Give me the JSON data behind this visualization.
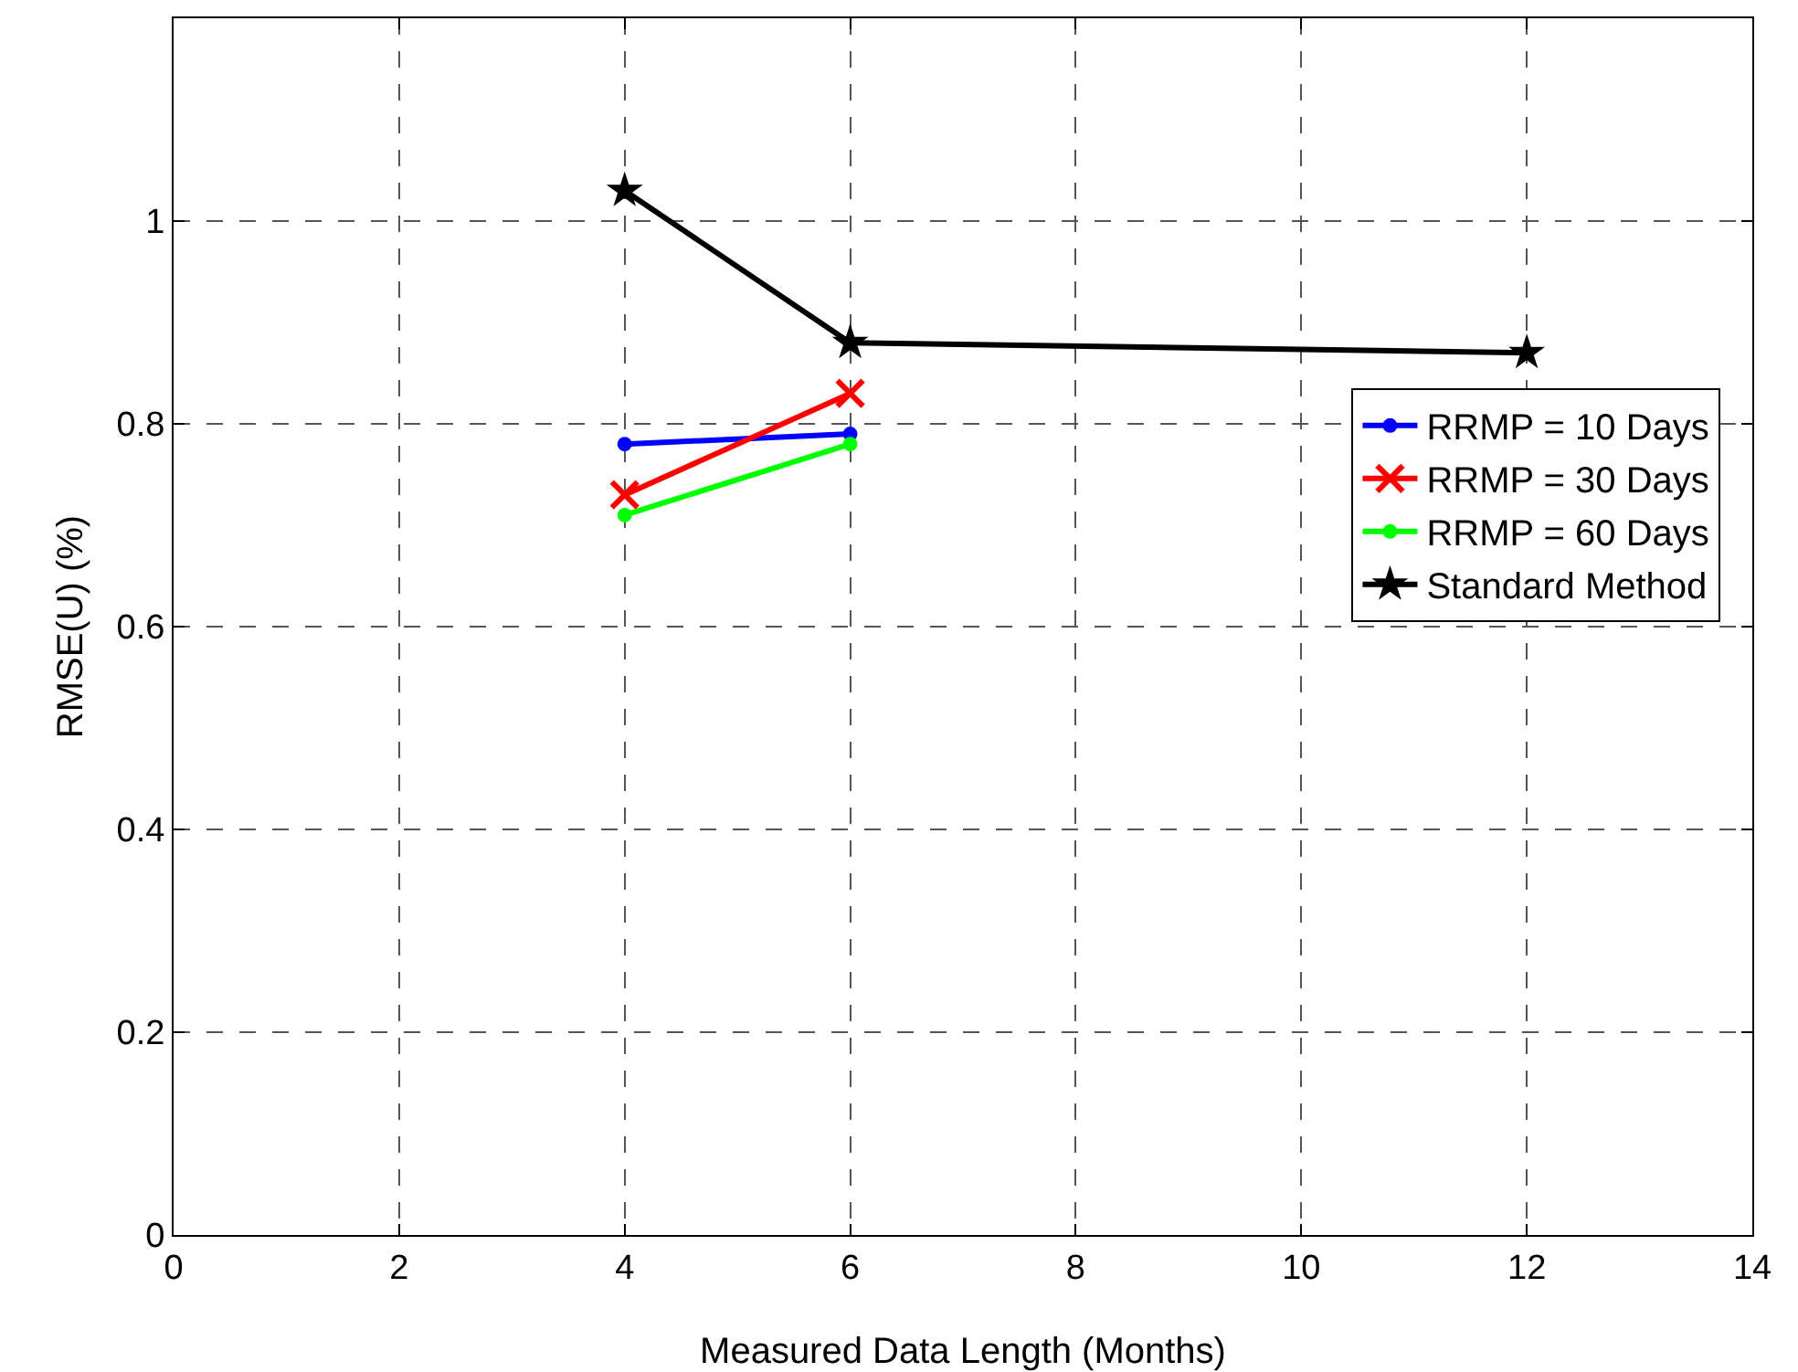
{
  "chart_data": {
    "type": "line",
    "xlabel": "Measured Data Length (Months)",
    "ylabel": "RMSE(U) (%)",
    "xlim": [
      0,
      14
    ],
    "xticks": [
      0,
      2,
      4,
      6,
      8,
      10,
      12,
      14
    ],
    "ylim": [
      0,
      1.2
    ],
    "yticks": [
      0,
      0.2,
      0.4,
      0.6,
      0.8,
      1
    ],
    "grid": true,
    "legend": "right",
    "line_style": "solid",
    "series": [
      {
        "name": "RRMP = 10 Days",
        "color": "#0000ff",
        "marker": "circle",
        "x": [
          4,
          6
        ],
        "values": [
          0.78,
          0.79
        ]
      },
      {
        "name": "RRMP = 30 Days",
        "color": "#ff0000",
        "marker": "cross",
        "x": [
          4,
          6
        ],
        "values": [
          0.73,
          0.83
        ]
      },
      {
        "name": "RRMP = 60 Days",
        "color": "#00ff00",
        "marker": "circle",
        "x": [
          4,
          6
        ],
        "values": [
          0.71,
          0.78
        ]
      },
      {
        "name": "Standard Method",
        "color": "#000000",
        "marker": "star",
        "x": [
          4,
          6,
          12
        ],
        "values": [
          1.03,
          0.88,
          0.87
        ]
      }
    ]
  }
}
